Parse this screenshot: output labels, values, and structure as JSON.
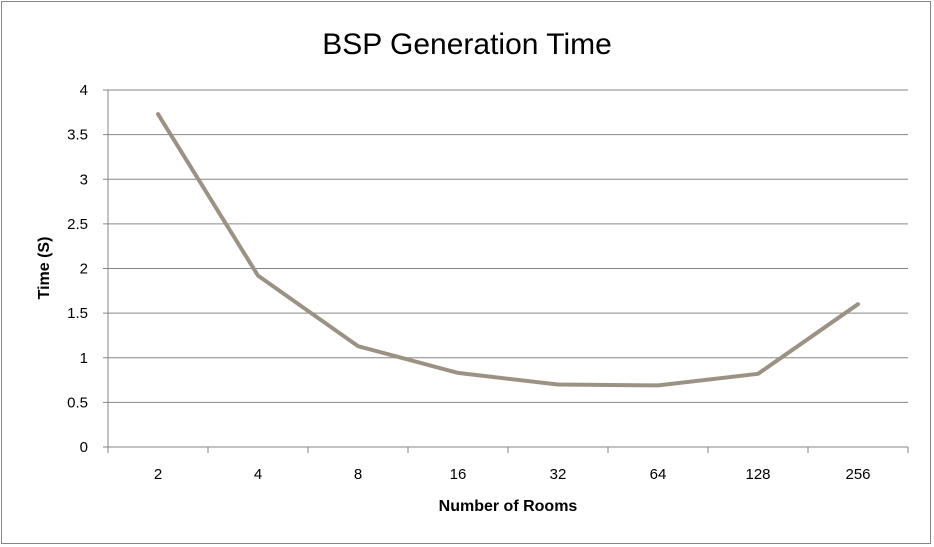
{
  "chart_data": {
    "type": "line",
    "title": "BSP Generation Time",
    "xlabel": "Number of Rooms",
    "ylabel": "Time (S)",
    "categories": [
      "2",
      "4",
      "8",
      "16",
      "32",
      "64",
      "128",
      "256"
    ],
    "series": [
      {
        "values": [
          3.73,
          1.92,
          1.13,
          0.83,
          0.7,
          0.69,
          0.82,
          1.6
        ],
        "color": "#9c9283"
      }
    ],
    "ylim": [
      0,
      4
    ],
    "yticks": [
      "0",
      "0.5",
      "1",
      "1.5",
      "2",
      "2.5",
      "3",
      "3.5",
      "4"
    ],
    "grid": true,
    "legend": "none"
  }
}
